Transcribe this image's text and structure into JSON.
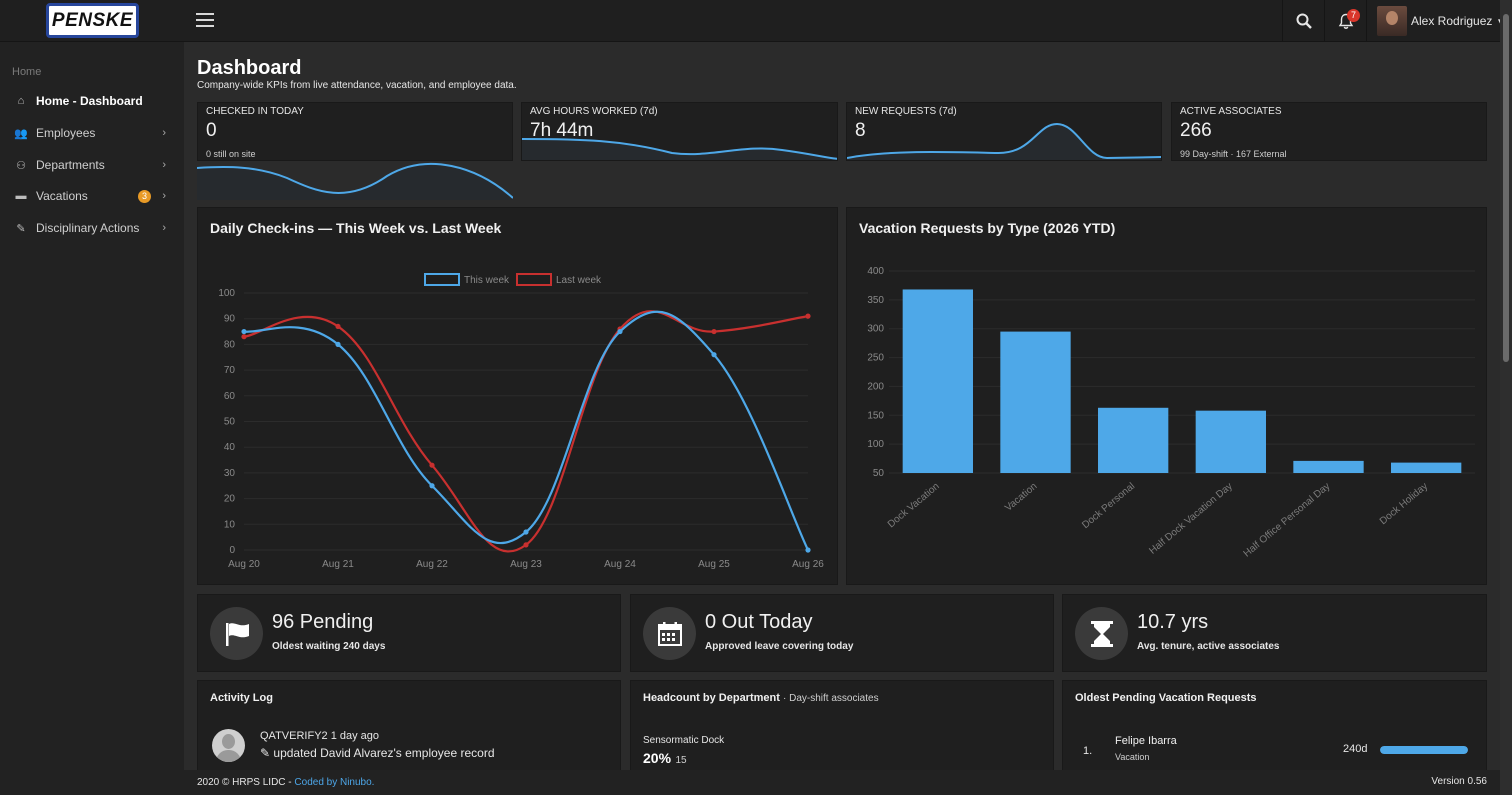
{
  "brand": {
    "logo_text": "PENSKE"
  },
  "topbar": {
    "notifications_count": "7",
    "user_name": "Alex Rodriguez"
  },
  "sidebar": {
    "breadcrumb": "Home",
    "items": [
      {
        "label": "Home - Dashboard",
        "icon": "home-icon",
        "active": true
      },
      {
        "label": "Employees",
        "icon": "users-icon"
      },
      {
        "label": "Departments",
        "icon": "sitemap-icon"
      },
      {
        "label": "Vacations",
        "icon": "bed-icon",
        "badge": "3"
      },
      {
        "label": "Disciplinary Actions",
        "icon": "edit-icon"
      }
    ]
  },
  "page": {
    "title": "Dashboard",
    "subtitle": "Company-wide KPIs from live attendance, vacation, and employee data."
  },
  "kpis": [
    {
      "label": "CHECKED IN TODAY",
      "value": "0",
      "note": "0 still on site"
    },
    {
      "label": "AVG HOURS WORKED (7d)",
      "value": "7h 44m",
      "note": ""
    },
    {
      "label": "NEW REQUESTS (7d)",
      "value": "8",
      "note": ""
    },
    {
      "label": "ACTIVE ASSOCIATES",
      "value": "266",
      "note": "99 Day-shift · 167 External"
    }
  ],
  "colors": {
    "accent": "#4ea8e8",
    "red": "#c8302f",
    "badge_orange": "#e89a26"
  },
  "chart_data": [
    {
      "type": "line",
      "title": "Daily Check-ins — This Week vs. Last Week",
      "categories": [
        "Aug 20",
        "Aug 21",
        "Aug 22",
        "Aug 23",
        "Aug 24",
        "Aug 25",
        "Aug 26"
      ],
      "series": [
        {
          "name": "This week",
          "values": [
            85,
            80,
            25,
            7,
            85,
            76,
            0
          ],
          "color": "#4ea8e8"
        },
        {
          "name": "Last week",
          "values": [
            83,
            87,
            33,
            2,
            86,
            85,
            91
          ],
          "color": "#c8302f"
        }
      ],
      "ylim": [
        0,
        100
      ],
      "yticks": [
        0,
        10,
        20,
        30,
        40,
        50,
        60,
        70,
        80,
        90,
        100
      ],
      "legend": "top",
      "grid": true
    },
    {
      "type": "bar",
      "title": "Vacation Requests by Type (2026 YTD)",
      "categories": [
        "Dock Vacation",
        "Vacation",
        "Dock Personal",
        "Half Dock Vacation Day",
        "Half Office Personal Day",
        "Dock Holiday"
      ],
      "values": [
        368,
        295,
        163,
        158,
        71,
        68
      ],
      "ylim": [
        50,
        400
      ],
      "yticks": [
        50,
        100,
        150,
        200,
        250,
        300,
        350,
        400
      ],
      "color": "#4ea8e8",
      "grid": true
    }
  ],
  "stats": [
    {
      "big": "96 Pending",
      "small": "Oldest waiting 240 days",
      "icon": "flag-icon"
    },
    {
      "big": "0 Out Today",
      "small": "Approved leave covering today",
      "icon": "calendar-icon"
    },
    {
      "big": "10.7 yrs",
      "small": "Avg. tenure, active associates",
      "icon": "hourglass-icon"
    }
  ],
  "activity": {
    "title": "Activity Log",
    "items": [
      {
        "user": "QATVERIFY2",
        "time": "1 day ago",
        "text": "updated David Alvarez's employee record"
      }
    ]
  },
  "headcount": {
    "title": "Headcount by Department",
    "subtitle": "· Day-shift associates",
    "items": [
      {
        "dept": "Sensormatic Dock",
        "pct": "20%",
        "count": "15"
      }
    ]
  },
  "oldest": {
    "title": "Oldest Pending Vacation Requests",
    "items": [
      {
        "num": "1.",
        "name": "Felipe Ibarra",
        "type": "Vacation",
        "days": "240d",
        "fraction": 1.0
      }
    ]
  },
  "footer": {
    "left": "2020 © HRPS LIDC - ",
    "link": "Coded by Ninubo.",
    "version": "Version 0.56"
  }
}
